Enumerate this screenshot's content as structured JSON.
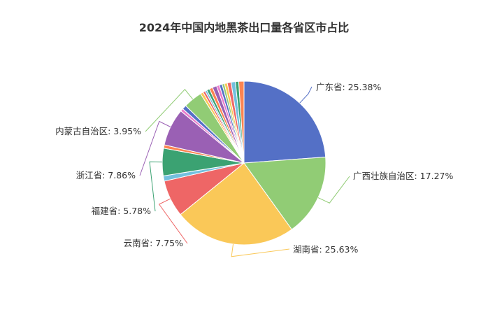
{
  "chart_data": {
    "type": "pie",
    "title": "2024年中国内地黑茶出口量各省区市占比",
    "labeled_slices": [
      {
        "name": "广东省",
        "value": 25.38,
        "label": "广东省: 25.38%",
        "color": "#5470c6"
      },
      {
        "name": "广西壮族自治区",
        "value": 17.27,
        "label": "广西壮族自治区: 17.27%",
        "color": "#91cc75"
      },
      {
        "name": "湖南省",
        "value": 25.63,
        "label": "湖南省: 25.63%",
        "color": "#fac858"
      },
      {
        "name": "云南省",
        "value": 7.75,
        "label": "云南省: 7.75%",
        "color": "#ee6666"
      },
      {
        "name": "福建省",
        "value": 5.78,
        "label": "福建省: 5.78%",
        "color": "#3ba272"
      },
      {
        "name": "浙江省",
        "value": 7.86,
        "label": "浙江省: 7.86%",
        "color": "#9a60b4"
      },
      {
        "name": "内蒙古自治区",
        "value": 3.95,
        "label": "内蒙古自治区: 3.95%",
        "color": "#91cc75"
      }
    ],
    "unlabeled_slice_values": [
      1.1,
      0.7,
      0.6,
      0.9,
      0.6,
      0.5,
      0.4,
      0.6,
      0.7,
      0.9,
      0.6,
      0.6,
      0.5,
      0.6,
      0.8,
      0.9,
      0.7,
      1.1
    ],
    "unlabeled_slice_colors": [
      "#73c0de",
      "#fc8452",
      "#ea7ccc",
      "#5470c6",
      "#fac858",
      "#ee6666",
      "#73c0de",
      "#3ba272",
      "#fc8452",
      "#9a60b4",
      "#ea7ccc",
      "#5470c6",
      "#91cc75",
      "#fac858",
      "#ee6666",
      "#73c0de",
      "#3ba272",
      "#fc8452"
    ]
  }
}
